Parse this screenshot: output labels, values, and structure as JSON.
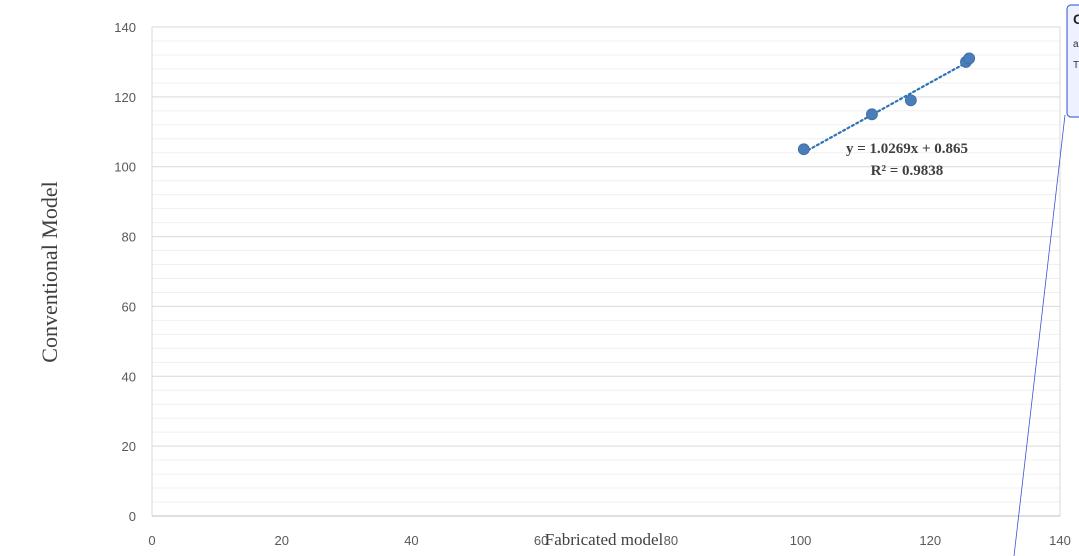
{
  "chart_data": {
    "type": "scatter",
    "title": "",
    "xlabel": "Fabricated model",
    "ylabel": "Conventional Model",
    "xlim": [
      0,
      140
    ],
    "ylim": [
      0,
      140
    ],
    "x_ticks": [
      "0",
      "20",
      "40",
      "60",
      "80",
      "100",
      "120",
      "140"
    ],
    "y_ticks": [
      "0",
      "20",
      "40",
      "60",
      "80",
      "100",
      "120",
      "140"
    ],
    "grid": true,
    "minor_grid": true,
    "legend": "none",
    "series": [
      {
        "points": [
          {
            "x": 100.5,
            "y": 105
          },
          {
            "x": 111,
            "y": 115
          },
          {
            "x": 117,
            "y": 119
          },
          {
            "x": 125.5,
            "y": 130
          },
          {
            "x": 126,
            "y": 131
          }
        ],
        "color": "#4a7ebb"
      }
    ],
    "trendline": {
      "type": "linear",
      "slope": 1.0269,
      "intercept": 0.865,
      "x_range": [
        100.5,
        126
      ],
      "style": "dotted",
      "color": "#2e75b6",
      "equation": "y = 1.0269x + 0.865",
      "r_squared": "R² = 0.9838"
    }
  },
  "annotation": {
    "title": "C",
    "line1": "a",
    "line2": "T",
    "border_color": "#4a6fd8",
    "fill_color": "#eef1ff"
  }
}
